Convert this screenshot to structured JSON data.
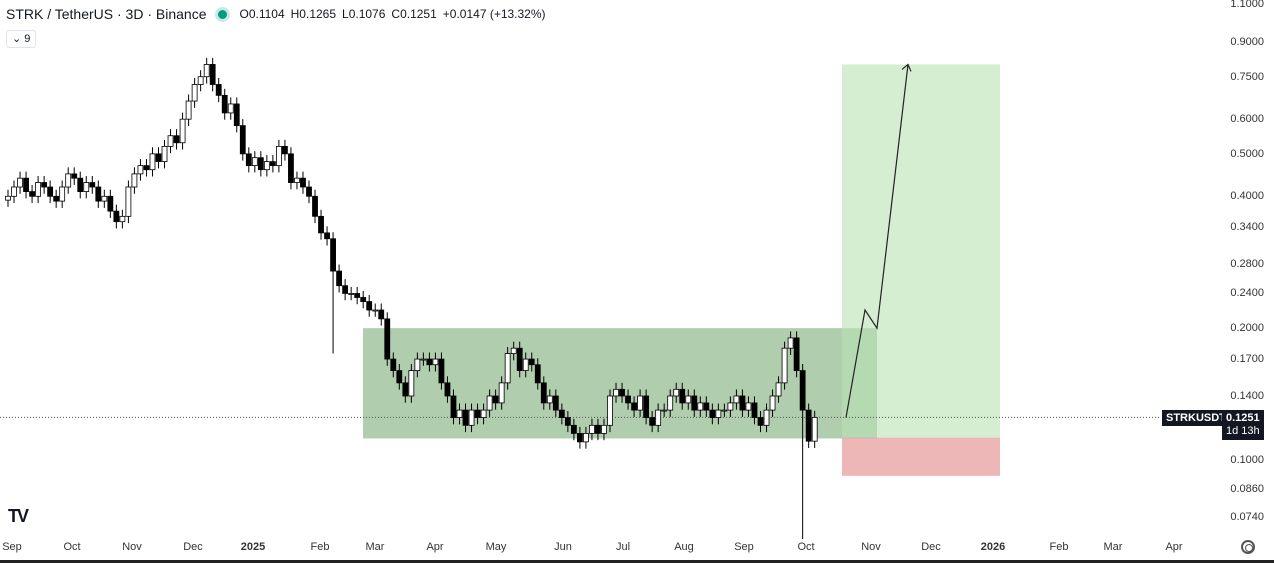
{
  "header": {
    "symbol": "STRK / TetherUS · 3D · Binance",
    "open": "O0.1104",
    "high": "H0.1265",
    "low": "L0.1076",
    "close": "C0.1251",
    "change": "+0.0147 (+13.32%)",
    "indicator_toggle": "⌄ 9"
  },
  "price_tag": {
    "symbol": "STRKUSDT",
    "price": "0.1251",
    "countdown": "1d 13h"
  },
  "colors": {
    "up": "#ffffff",
    "down": "#000000",
    "range_box": "#8fb98a",
    "target": "#b9e3b4",
    "stop": "#e8a5a5"
  },
  "chart_data": {
    "type": "candlestick",
    "title": "STRK / TetherUS · 3D · Binance",
    "yscale": "log",
    "ylim": [
      0.068,
      1.1
    ],
    "y_ticks": [
      "1.1000",
      "0.9000",
      "0.7500",
      "0.6000",
      "0.5000",
      "0.4000",
      "0.3400",
      "0.2800",
      "0.2400",
      "0.2000",
      "0.1700",
      "0.1400",
      "0.1000",
      "0.0860",
      "0.0740"
    ],
    "x_ticks": [
      {
        "label": "Sep",
        "bold": false
      },
      {
        "label": "Oct",
        "bold": false
      },
      {
        "label": "Nov",
        "bold": false
      },
      {
        "label": "Dec",
        "bold": false
      },
      {
        "label": "2025",
        "bold": true
      },
      {
        "label": "Feb",
        "bold": false
      },
      {
        "label": "Mar",
        "bold": false
      },
      {
        "label": "Apr",
        "bold": false
      },
      {
        "label": "May",
        "bold": false
      },
      {
        "label": "Jun",
        "bold": false
      },
      {
        "label": "Jul",
        "bold": false
      },
      {
        "label": "Aug",
        "bold": false
      },
      {
        "label": "Sep",
        "bold": false
      },
      {
        "label": "Oct",
        "bold": false
      },
      {
        "label": "Nov",
        "bold": false
      },
      {
        "label": "Dec",
        "bold": false
      },
      {
        "label": "2026",
        "bold": true
      },
      {
        "label": "Feb",
        "bold": false
      },
      {
        "label": "Mar",
        "bold": false
      },
      {
        "label": "Apr",
        "bold": false
      }
    ],
    "closes": [
      0.4,
      0.42,
      0.44,
      0.41,
      0.4,
      0.43,
      0.42,
      0.4,
      0.39,
      0.42,
      0.45,
      0.44,
      0.41,
      0.43,
      0.42,
      0.39,
      0.4,
      0.37,
      0.35,
      0.36,
      0.42,
      0.45,
      0.47,
      0.46,
      0.5,
      0.48,
      0.52,
      0.55,
      0.53,
      0.6,
      0.66,
      0.72,
      0.75,
      0.8,
      0.72,
      0.68,
      0.62,
      0.65,
      0.58,
      0.5,
      0.47,
      0.49,
      0.46,
      0.48,
      0.47,
      0.52,
      0.5,
      0.43,
      0.44,
      0.42,
      0.4,
      0.36,
      0.33,
      0.32,
      0.27,
      0.25,
      0.24,
      0.24,
      0.235,
      0.23,
      0.22,
      0.22,
      0.21,
      0.17,
      0.16,
      0.15,
      0.14,
      0.16,
      0.17,
      0.17,
      0.165,
      0.17,
      0.15,
      0.14,
      0.125,
      0.13,
      0.12,
      0.13,
      0.125,
      0.13,
      0.14,
      0.135,
      0.15,
      0.175,
      0.18,
      0.16,
      0.17,
      0.165,
      0.15,
      0.135,
      0.14,
      0.13,
      0.125,
      0.12,
      0.115,
      0.11,
      0.115,
      0.12,
      0.115,
      0.12,
      0.14,
      0.145,
      0.14,
      0.135,
      0.13,
      0.14,
      0.125,
      0.12,
      0.13,
      0.13,
      0.14,
      0.145,
      0.135,
      0.14,
      0.13,
      0.135,
      0.13,
      0.125,
      0.13,
      0.13,
      0.135,
      0.14,
      0.13,
      0.135,
      0.125,
      0.12,
      0.13,
      0.14,
      0.15,
      0.18,
      0.19,
      0.16,
      0.13,
      0.1104,
      0.1251
    ],
    "range_box": {
      "top": 0.2,
      "bottom": 0.112
    },
    "long_position": {
      "entry": 0.1125,
      "target": 0.8,
      "stop": 0.092
    },
    "projection_path": [
      0.125,
      0.22,
      0.2,
      0.8
    ],
    "last_price": 0.1251
  }
}
